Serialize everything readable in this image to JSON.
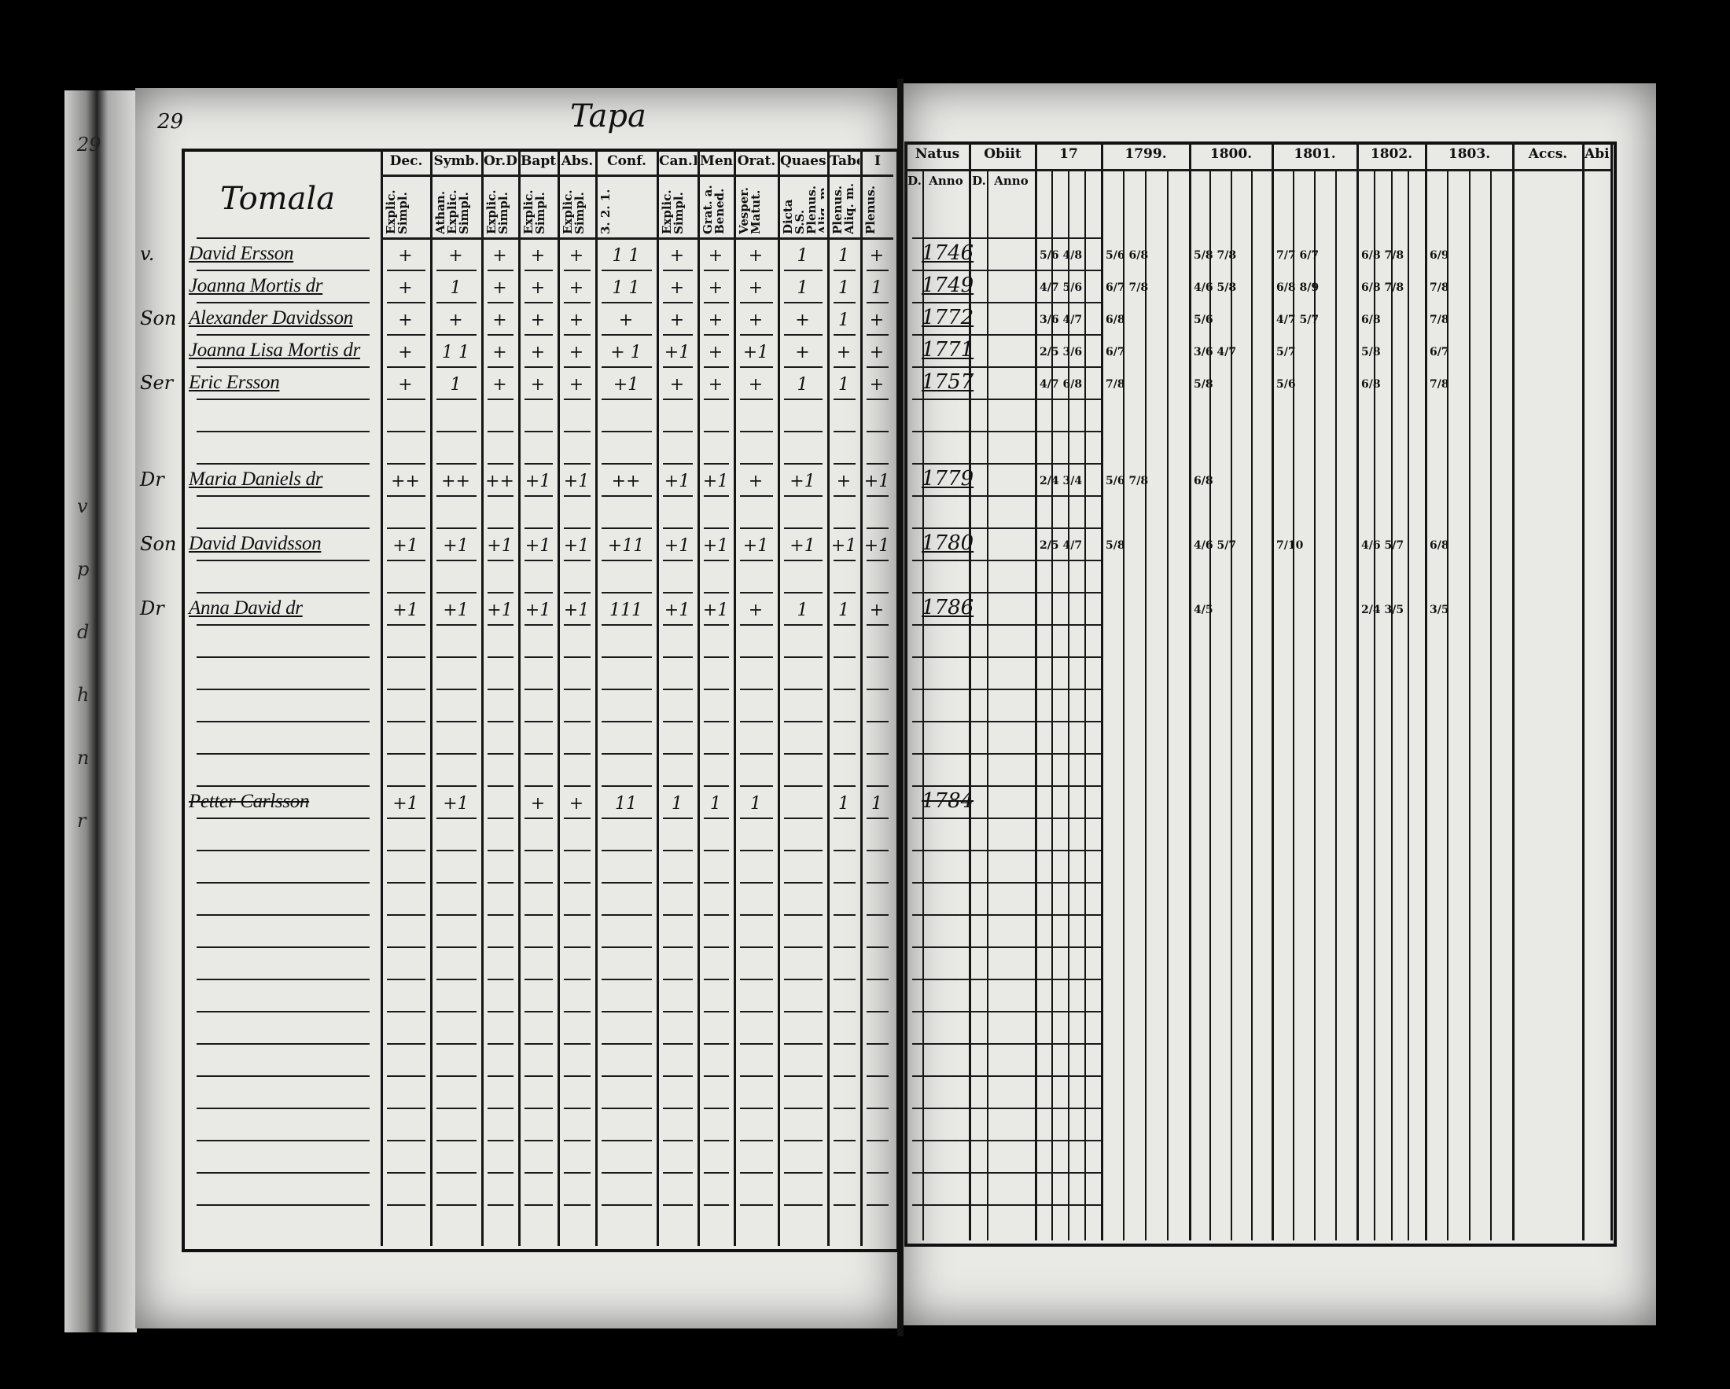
{
  "left_page": {
    "page_number": "29",
    "title": "Tapa",
    "name_header": "Tomala",
    "columns": [
      {
        "label": "Dec.",
        "sub": "Explic. Simpl."
      },
      {
        "label": "Symb.",
        "sub": "Athan. Explic. Simpl."
      },
      {
        "label": "Or.D.",
        "sub": "Explic. Simpl."
      },
      {
        "label": "Bapt.",
        "sub": "Explic. Simpl."
      },
      {
        "label": "Abs.",
        "sub": "Explic. Simpl."
      },
      {
        "label": "Conf.",
        "sub": "3. 2. 1."
      },
      {
        "label": "Can.D",
        "sub": "Explic. Simpl."
      },
      {
        "label": "Mens.",
        "sub": "Grat. a. Bened."
      },
      {
        "label": "Orat.",
        "sub": "Vesper. Matut."
      },
      {
        "label": "Quaest.",
        "sub": "Dicta S.S. Plenus. Aliq. m."
      },
      {
        "label": "Tabel.",
        "sub": "Plenus. Aliq. m."
      },
      {
        "label": "I",
        "sub": "Plenus."
      }
    ]
  },
  "right_page": {
    "columns": [
      {
        "label": "Natus",
        "sub": [
          "D.",
          "Anno"
        ]
      },
      {
        "label": "Obiit",
        "sub": [
          "D.",
          "Anno"
        ]
      },
      {
        "label": "17",
        "sub": []
      },
      {
        "label": "1799.",
        "sub": []
      },
      {
        "label": "1800.",
        "sub": []
      },
      {
        "label": "1801.",
        "sub": []
      },
      {
        "label": "1802.",
        "sub": []
      },
      {
        "label": "1803.",
        "sub": []
      },
      {
        "label": "Accs.",
        "sub": []
      },
      {
        "label": "Abit.",
        "sub": []
      }
    ]
  },
  "entries": [
    {
      "prefix": "v.",
      "name": "David Ersson",
      "born": "1746",
      "struck": false,
      "marks": [
        "+",
        "+",
        "+",
        "+",
        "+",
        "1 1",
        "+",
        "+",
        "+",
        "1",
        "1",
        "+"
      ],
      "years": [
        "5/6 4/8",
        "5/6 6/8",
        "5/8 7/8",
        "7/7 6/7",
        "6/8 7/8",
        "6/9"
      ]
    },
    {
      "prefix": "",
      "name": "Joanna Mortis dr",
      "born": "1749",
      "struck": false,
      "marks": [
        "+",
        "1",
        "+",
        "+",
        "+",
        "1 1",
        "+",
        "+",
        "+",
        "1",
        "1",
        "1"
      ],
      "years": [
        "4/7 5/6",
        "6/7 7/8",
        "4/6 5/8",
        "6/8 8/9",
        "6/8 7/8",
        "7/8"
      ]
    },
    {
      "prefix": "Son",
      "name": "Alexander Davidsson",
      "born": "1772",
      "struck": false,
      "marks": [
        "+",
        "+",
        "+",
        "+",
        "+",
        "+",
        "+",
        "+",
        "+",
        "+",
        "1",
        "+"
      ],
      "years": [
        "3/6 4/7",
        "6/8",
        "5/6",
        "4/7 5/7",
        "6/8",
        "7/8"
      ]
    },
    {
      "prefix": "",
      "name": "Joanna Lisa Mortis dr",
      "born": "1771",
      "struck": false,
      "marks": [
        "+",
        "1 1",
        "+",
        "+",
        "+",
        "+ 1",
        "+1",
        "+",
        "+1",
        "+",
        "+",
        "+"
      ],
      "years": [
        "2/5 3/6",
        "6/7",
        "3/6 4/7",
        "5/7",
        "5/8",
        "6/7"
      ]
    },
    {
      "prefix": "Ser",
      "name": "Eric Ersson",
      "born": "1757",
      "struck": false,
      "marks": [
        "+",
        "1",
        "+",
        "+",
        "+",
        "+1",
        "+",
        "+",
        "+",
        "1",
        "1",
        "+"
      ],
      "years": [
        "4/7 6/8",
        "7/8",
        "5/8",
        "5/6",
        "6/8",
        "7/8"
      ]
    },
    {
      "prefix": "Dr",
      "name": "Maria Daniels dr",
      "born": "1779",
      "struck": false,
      "marks": [
        "++",
        "++",
        "++",
        "+1",
        "+1",
        "++",
        "+1",
        "+1",
        "+",
        "+1",
        "+",
        "+1"
      ],
      "years": [
        "2/4 3/4",
        "5/6 7/8",
        "6/8",
        "",
        "",
        ""
      ]
    },
    {
      "prefix": "Son",
      "name": "David Davidsson",
      "born": "1780",
      "struck": false,
      "marks": [
        "+1",
        "+1",
        "+1",
        "+1",
        "+1",
        "+11",
        "+1",
        "+1",
        "+1",
        "+1",
        "+1",
        "+1"
      ],
      "years": [
        "2/5 4/7",
        "5/8",
        "4/6 5/7",
        "7/10",
        "4/6 5/7",
        "6/8"
      ]
    },
    {
      "prefix": "Dr",
      "name": "Anna David dr",
      "born": "1786",
      "struck": false,
      "marks": [
        "+1",
        "+1",
        "+1",
        "+1",
        "+1",
        "111",
        "+1",
        "+1",
        "+",
        "1",
        "1",
        "+"
      ],
      "years": [
        "",
        "",
        "4/5",
        "",
        "2/4 3/5",
        "3/5"
      ]
    },
    {
      "prefix": "",
      "name": "Petter Carlsson",
      "born": "1784",
      "struck": true,
      "marks": [
        "+1",
        "+1",
        "",
        "+",
        "+",
        "11",
        "1",
        "1",
        "1",
        "",
        "1",
        "1"
      ],
      "years": [
        "",
        "",
        "",
        "",
        "",
        ""
      ]
    }
  ],
  "margin_notes": [
    "29",
    "v",
    "p",
    "d",
    "h",
    "n",
    "r"
  ]
}
